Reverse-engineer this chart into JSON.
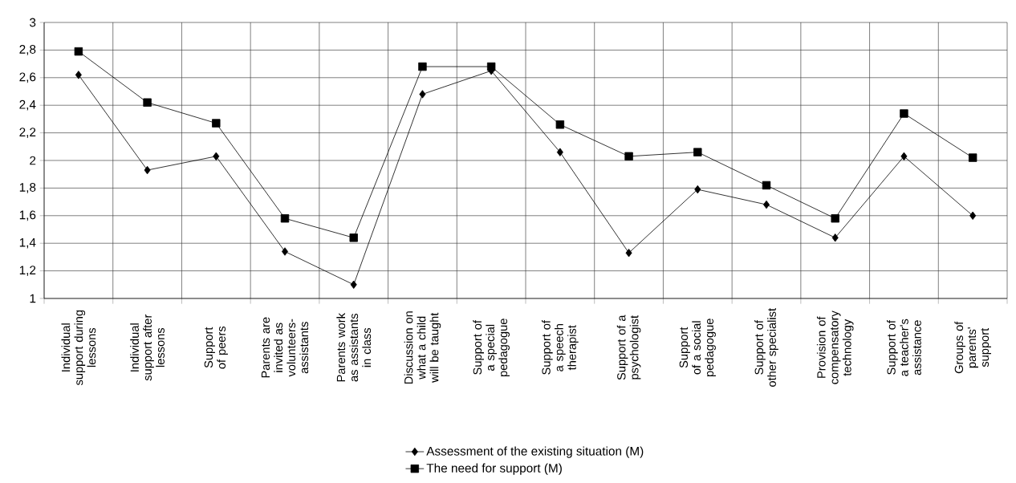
{
  "chart_data": {
    "type": "line",
    "categories": [
      "Individual support during lessons",
      "Individual support after lessons",
      "Support of peers",
      "Parents are invited as volunteers-assistants",
      "Parents work as assistants in class",
      "Discussion on what a child will be taught",
      "Support of a special pedagogue",
      "Support of a speech therapist",
      "Support of a psychologist",
      "Support of a social pedagogue",
      "Support of other specialist",
      "Provision of compensatory technology",
      "Support of a teacher's assistance",
      "Groups of parents' support"
    ],
    "series": [
      {
        "name": "Assessment of the existing situation (M)",
        "color": "#000000",
        "marker": "diamond",
        "values": [
          2.62,
          1.93,
          2.03,
          1.34,
          1.1,
          2.48,
          2.65,
          2.06,
          1.33,
          1.79,
          1.68,
          1.44,
          2.03,
          1.6
        ]
      },
      {
        "name": "The need for support (M)",
        "color": "#000000",
        "marker": "square",
        "values": [
          2.79,
          2.42,
          2.27,
          1.58,
          1.44,
          2.68,
          2.68,
          2.26,
          2.03,
          2.06,
          1.82,
          1.58,
          2.34,
          2.02
        ]
      }
    ],
    "ylim": [
      1,
      3
    ],
    "yticks": [
      1,
      {
        "value": 1.2,
        "label": "1,2"
      },
      {
        "value": 1.4,
        "label": "1,4"
      },
      {
        "value": 1.6,
        "label": "1,6"
      },
      {
        "value": 1.8,
        "label": "1,8"
      },
      2,
      {
        "value": 2.2,
        "label": "2,2"
      },
      {
        "value": 2.4,
        "label": "2,4"
      },
      {
        "value": 2.6,
        "label": "2,6"
      },
      {
        "value": 2.8,
        "label": "2,8"
      },
      3
    ],
    "grid": true,
    "legend": "bottom",
    "line_style": "solid"
  }
}
